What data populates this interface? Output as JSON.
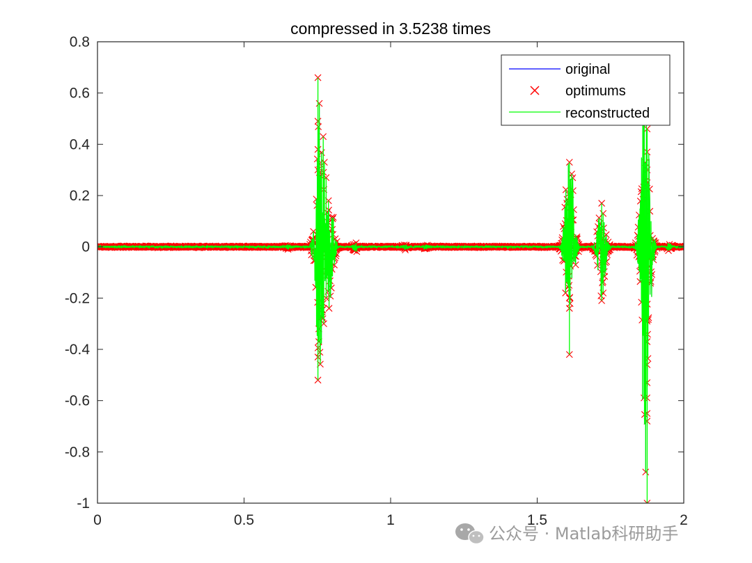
{
  "chart_data": {
    "type": "line",
    "title": "compressed in 3.5238 times",
    "xlabel": "",
    "ylabel": "",
    "xlim": [
      0,
      2
    ],
    "ylim": [
      -1,
      0.8
    ],
    "x_ticks": [
      "0",
      "0.5",
      "1",
      "1.5",
      "2"
    ],
    "y_ticks": [
      "0.8",
      "0.6",
      "0.4",
      "0.2",
      "0",
      "-0.2",
      "-0.4",
      "-0.6",
      "-0.8",
      "-1"
    ],
    "grid": false,
    "legend_position": "top-right",
    "series": [
      {
        "name": "original",
        "color": "#0000ff",
        "style": "line"
      },
      {
        "name": "optimums",
        "color": "#ff0000",
        "style": "x-marker"
      },
      {
        "name": "reconstructed",
        "color": "#00ff00",
        "style": "line"
      }
    ],
    "bursts": [
      {
        "x": 0.65,
        "amp": 0.012
      },
      {
        "x": 0.76,
        "amp": 0.66
      },
      {
        "x": 0.79,
        "amp": 0.3
      },
      {
        "x": 0.88,
        "amp": 0.025
      },
      {
        "x": 1.05,
        "amp": 0.015
      },
      {
        "x": 1.12,
        "amp": 0.012
      },
      {
        "x": 1.61,
        "amp": 0.42
      },
      {
        "x": 1.72,
        "amp": 0.21
      },
      {
        "x": 1.87,
        "amp": 1.0
      },
      {
        "x": 1.95,
        "amp": 0.02
      }
    ],
    "optimum_points": [
      [
        0.752,
        0.66
      ],
      [
        0.752,
        0.49
      ],
      [
        0.752,
        0.38
      ],
      [
        0.752,
        0.3
      ],
      [
        0.752,
        -0.43
      ],
      [
        0.752,
        -0.52
      ],
      [
        0.755,
        -0.37
      ],
      [
        0.755,
        -0.32
      ],
      [
        0.757,
        0.29
      ],
      [
        0.757,
        -0.28
      ],
      [
        0.77,
        0.43
      ],
      [
        0.772,
        -0.3
      ],
      [
        0.774,
        0.33
      ],
      [
        0.78,
        0.27
      ],
      [
        0.78,
        -0.2
      ],
      [
        0.788,
        0.18
      ],
      [
        0.79,
        -0.24
      ],
      [
        1.61,
        0.33
      ],
      [
        1.61,
        -0.42
      ],
      [
        1.61,
        0.17
      ],
      [
        1.61,
        -0.24
      ],
      [
        1.61,
        -0.2
      ],
      [
        1.72,
        0.17
      ],
      [
        1.72,
        -0.21
      ],
      [
        1.725,
        0.13
      ],
      [
        1.725,
        -0.18
      ],
      [
        1.875,
        0.46
      ],
      [
        1.875,
        0.37
      ],
      [
        1.875,
        0.3
      ],
      [
        1.875,
        0.25
      ],
      [
        1.875,
        -0.29
      ],
      [
        1.875,
        -0.37
      ],
      [
        1.875,
        -0.46
      ],
      [
        1.875,
        -0.53
      ],
      [
        1.875,
        -0.65
      ],
      [
        1.875,
        -0.68
      ],
      [
        1.875,
        -1.0
      ]
    ]
  },
  "watermark": {
    "text": "公众号 · Matlab科研助手"
  }
}
